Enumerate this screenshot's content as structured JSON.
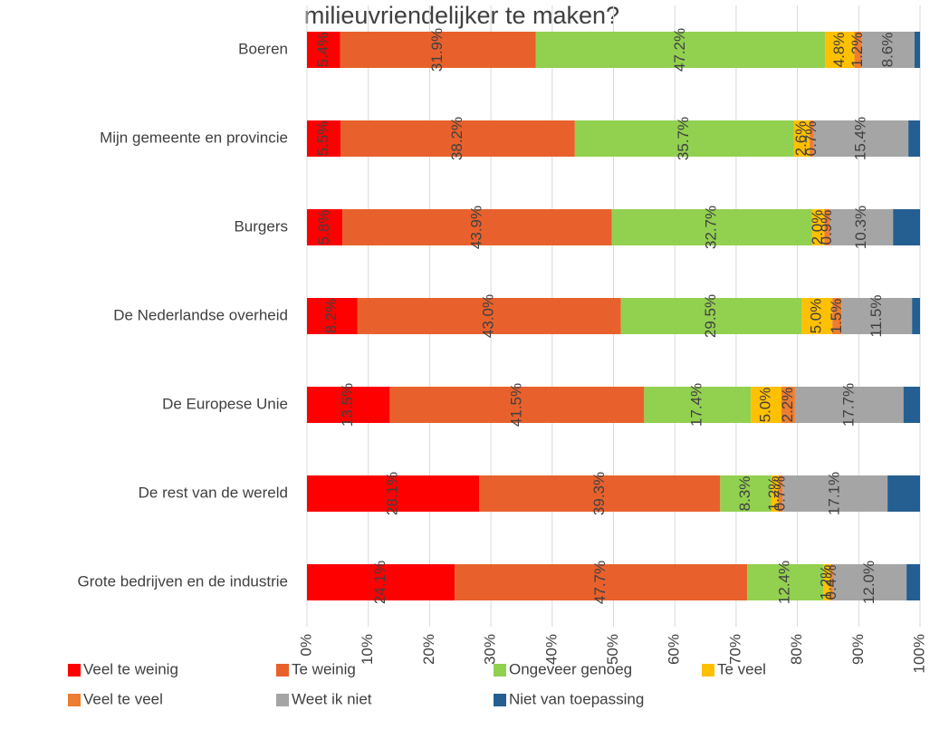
{
  "chart_data": {
    "type": "bar",
    "orientation": "horizontal",
    "stacked": true,
    "title": "milieuvriendelijker te maken?",
    "categories": [
      "Boeren",
      "Mijn gemeente en provincie",
      "Burgers",
      "De Nederlandse overheid",
      "De Europese Unie",
      "De rest van de wereld",
      "Grote bedrijven en de industrie"
    ],
    "series": [
      {
        "name": "Veel te weinig",
        "color": "#ff0000",
        "values": [
          5.4,
          5.5,
          5.8,
          8.2,
          13.5,
          28.1,
          24.1
        ],
        "value_labels": [
          "5.4%",
          "5.5%",
          "5.8%",
          "8.2%",
          "13.5%",
          "28.1%",
          "24.1%"
        ]
      },
      {
        "name": "Te weinig",
        "color": "#e8612c",
        "values": [
          31.9,
          38.2,
          43.9,
          43.0,
          41.5,
          39.3,
          47.7
        ],
        "value_labels": [
          "31.9%",
          "38.2%",
          "43.9%",
          "43.0%",
          "41.5%",
          "39.3%",
          "47.7%"
        ]
      },
      {
        "name": "Ongeveer genoeg",
        "color": "#92d050",
        "values": [
          47.2,
          35.7,
          32.7,
          29.5,
          17.4,
          8.3,
          12.4
        ],
        "value_labels": [
          "47.2%",
          "35.7%",
          "32.7%",
          "29.5%",
          "17.4%",
          "8.3%",
          "12.4%"
        ]
      },
      {
        "name": "Te veel",
        "color": "#ffc000",
        "values": [
          4.8,
          2.6,
          2.0,
          5.0,
          5.0,
          1.2,
          1.2
        ],
        "value_labels": [
          "4.8%",
          "2.6%",
          "2.0%",
          "5.0%",
          "5.0%",
          "1.2%",
          "1.2%"
        ]
      },
      {
        "name": "Veel te veel",
        "color": "#ed7d31",
        "values": [
          1.2,
          0.7,
          0.9,
          1.5,
          2.2,
          0.7,
          0.4
        ],
        "value_labels": [
          "1.2%",
          "0.7%",
          "0.9%",
          "1.5%",
          "2.2%",
          "0.7%",
          "0.4%"
        ]
      },
      {
        "name": "Weet ik niet",
        "color": "#a5a5a5",
        "values": [
          8.6,
          15.4,
          10.3,
          11.5,
          17.7,
          17.1,
          12.0
        ],
        "value_labels": [
          "8.6%",
          "15.4%",
          "10.3%",
          "11.5%",
          "17.7%",
          "17.1%",
          "12.0%"
        ]
      },
      {
        "name": "Niet van toepassing",
        "color": "#255e91",
        "values": [
          0.9,
          1.9,
          4.4,
          1.3,
          2.7,
          5.3,
          2.2
        ]
      }
    ],
    "xlim": [
      0,
      100
    ],
    "xticks": [
      {
        "value": 0,
        "label": "0%"
      },
      {
        "value": 10,
        "label": "10%"
      },
      {
        "value": 20,
        "label": "20%"
      },
      {
        "value": 30,
        "label": "30%"
      },
      {
        "value": 40,
        "label": "40%"
      },
      {
        "value": 50,
        "label": "50%"
      },
      {
        "value": 60,
        "label": "60%"
      },
      {
        "value": 70,
        "label": "70%"
      },
      {
        "value": 80,
        "label": "80%"
      },
      {
        "value": 90,
        "label": "90%"
      },
      {
        "value": 100,
        "label": "100%"
      }
    ],
    "grid": true,
    "legend": "bottom"
  }
}
